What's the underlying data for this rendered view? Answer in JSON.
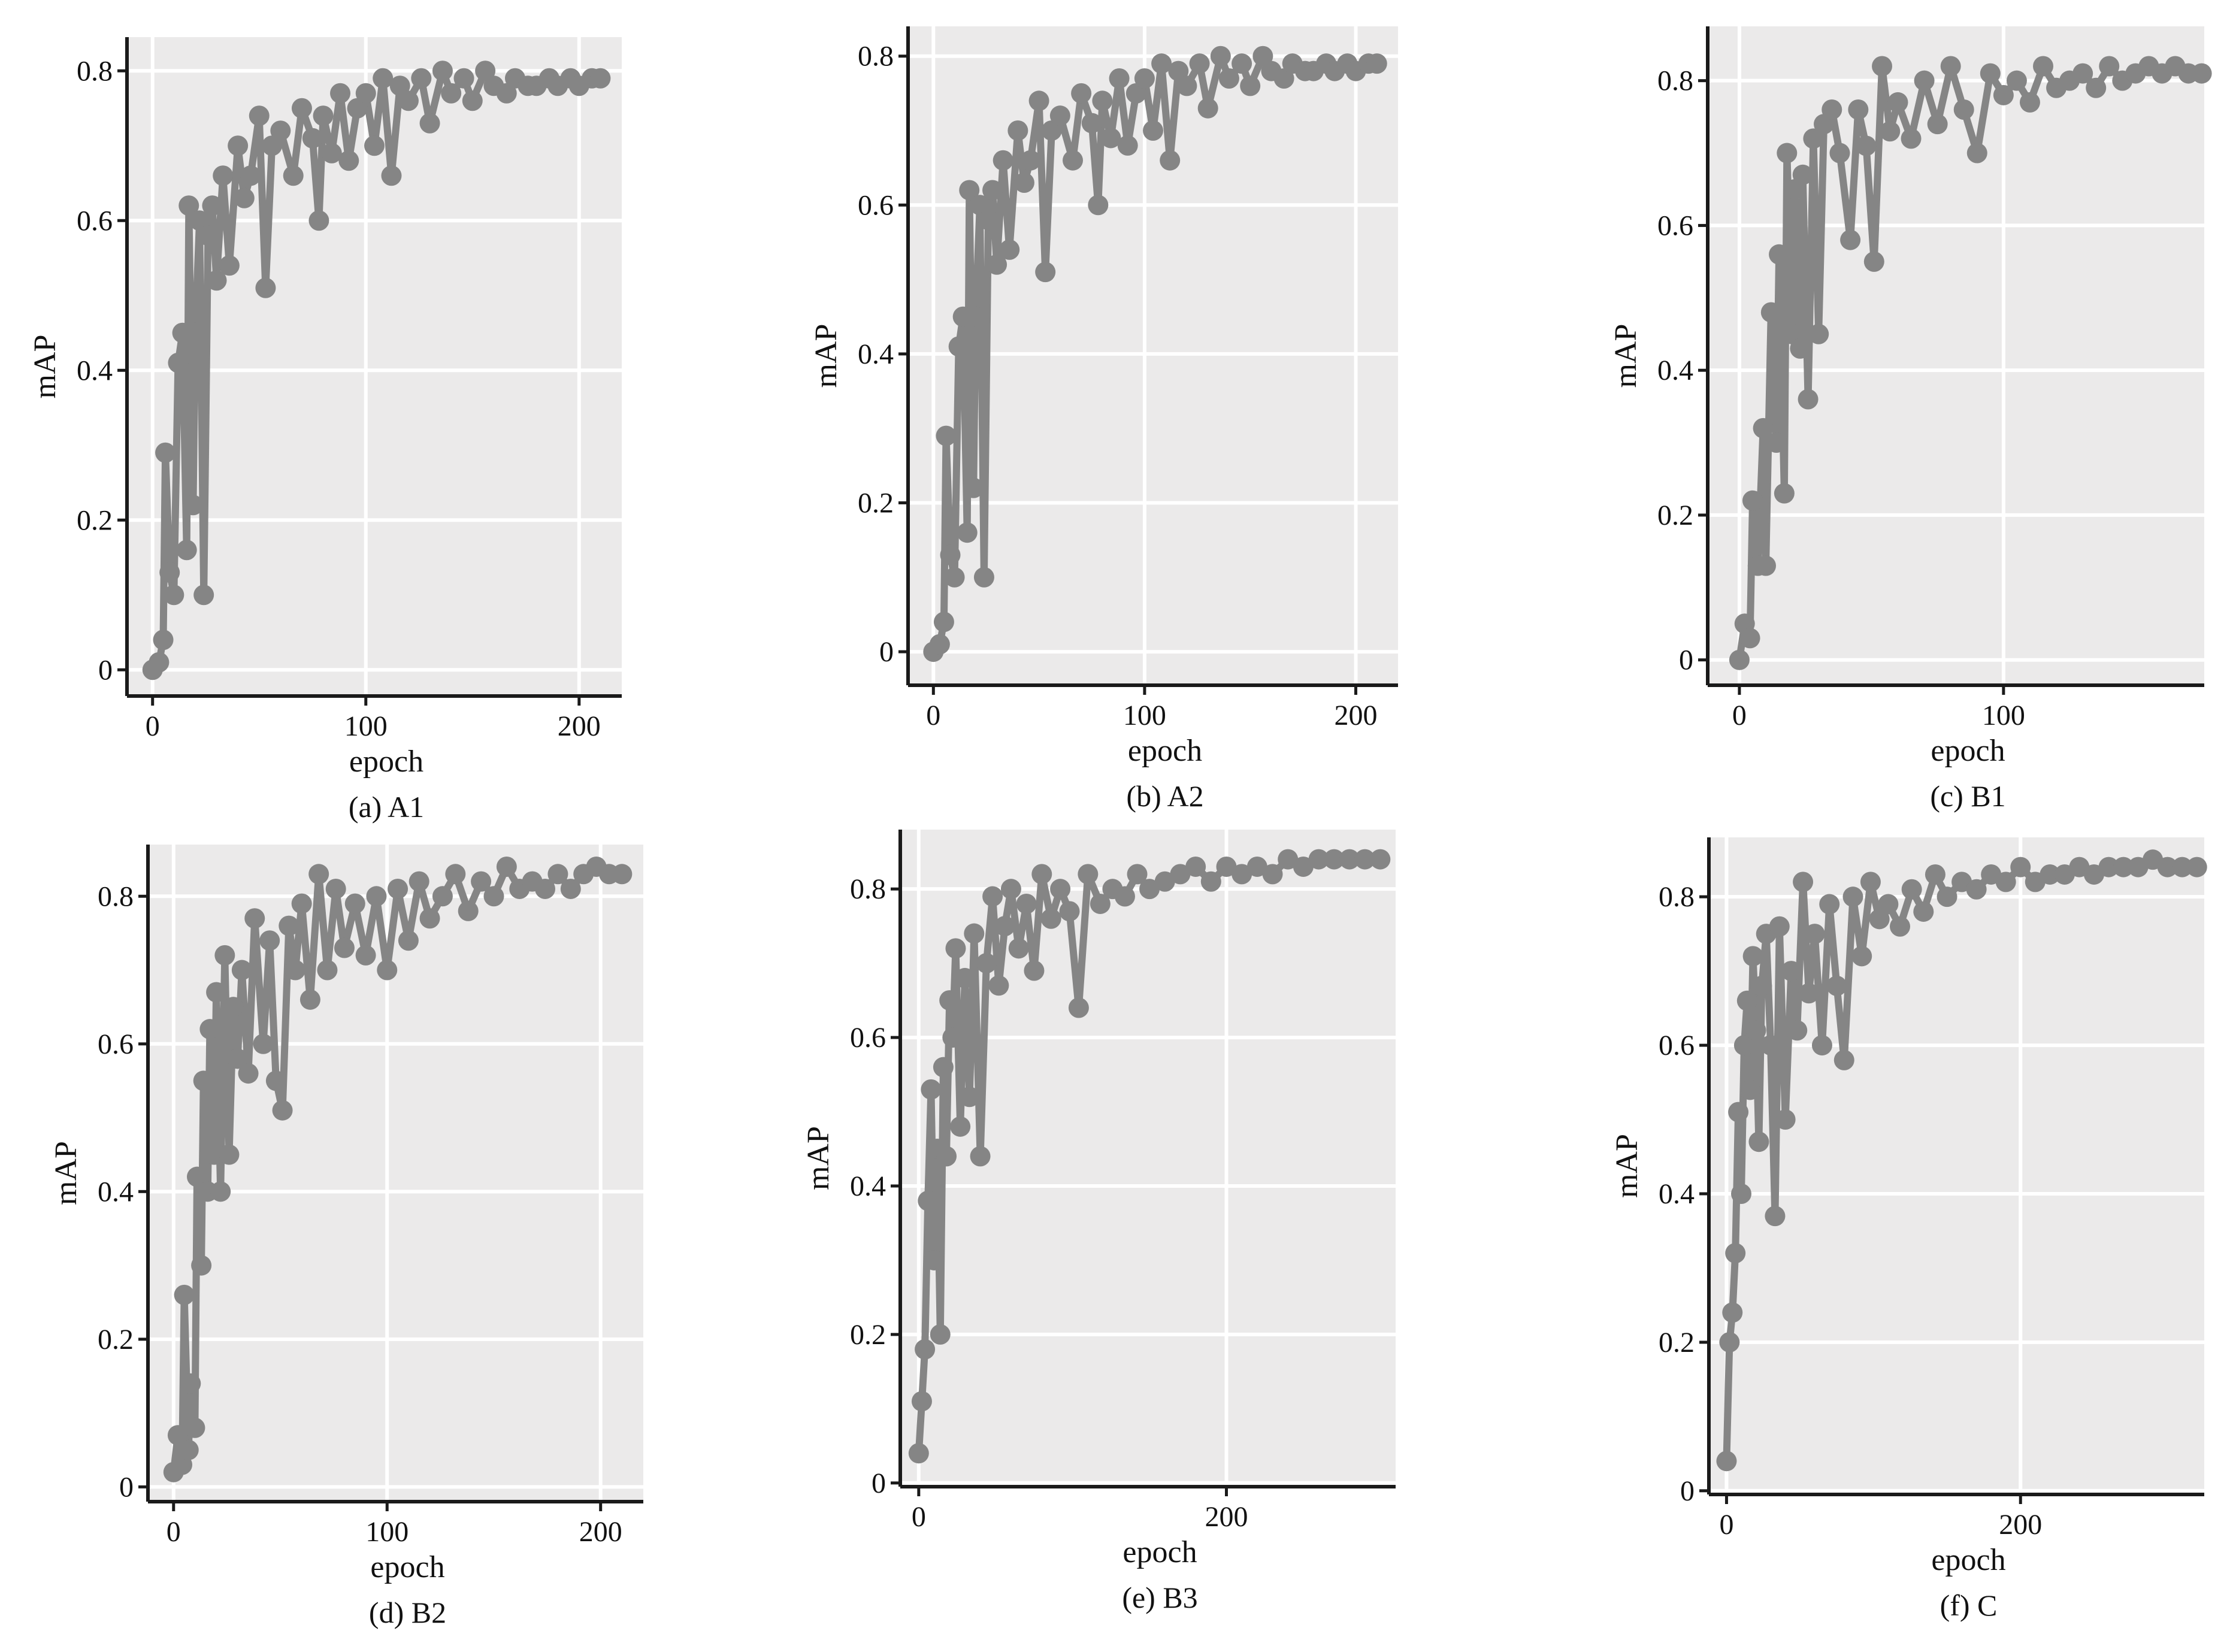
{
  "figure": {
    "series_color": "#858585",
    "plot_background": "#ebeaea",
    "grid_color": "#ffffff",
    "axis_color": "#1a1a1a"
  },
  "chart_data": [
    {
      "type": "line",
      "caption": "(a) A1",
      "xlabel": "epoch",
      "ylabel": "mAP",
      "xlim": [
        -12,
        220
      ],
      "ylim": [
        -0.035,
        0.845
      ],
      "xticks": [
        0,
        100,
        200
      ],
      "yticks": [
        0,
        0.2,
        0.4,
        0.6,
        0.8
      ],
      "xtick_labels": [
        "0",
        "100",
        "200"
      ],
      "ytick_labels": [
        "0",
        "0.2",
        "0.4",
        "0.6",
        "0.8"
      ],
      "grid": true,
      "series": [
        {
          "markers": true,
          "x": [
            0,
            3,
            5,
            6,
            8,
            10,
            12,
            14,
            16,
            17,
            19,
            20,
            22,
            24,
            26,
            28,
            30,
            33,
            36,
            40,
            43,
            46,
            50,
            53,
            56,
            60,
            66,
            70,
            75,
            78,
            80,
            84,
            88,
            92,
            96,
            100,
            104,
            108,
            112,
            116,
            120,
            126,
            130,
            136,
            140,
            146,
            150,
            156,
            160,
            166,
            170,
            176,
            180,
            186,
            190,
            196,
            200,
            206,
            210
          ],
          "y": [
            0.0,
            0.01,
            0.04,
            0.29,
            0.13,
            0.1,
            0.41,
            0.45,
            0.16,
            0.62,
            0.22,
            0.45,
            0.6,
            0.1,
            0.58,
            0.62,
            0.52,
            0.66,
            0.54,
            0.7,
            0.63,
            0.66,
            0.74,
            0.51,
            0.7,
            0.72,
            0.66,
            0.75,
            0.71,
            0.6,
            0.74,
            0.69,
            0.77,
            0.68,
            0.75,
            0.77,
            0.7,
            0.79,
            0.66,
            0.78,
            0.76,
            0.79,
            0.73,
            0.8,
            0.77,
            0.79,
            0.76,
            0.8,
            0.78,
            0.77,
            0.79,
            0.78,
            0.78,
            0.79,
            0.78,
            0.79,
            0.78,
            0.79,
            0.79
          ]
        }
      ]
    },
    {
      "type": "line",
      "caption": "(b) A2",
      "xlabel": "epoch",
      "ylabel": "mAP",
      "xlim": [
        -12,
        220
      ],
      "ylim": [
        -0.045,
        0.84
      ],
      "xticks": [
        0,
        100,
        200
      ],
      "yticks": [
        0,
        0.2,
        0.4,
        0.6,
        0.8
      ],
      "xtick_labels": [
        "0",
        "100",
        "200"
      ],
      "ytick_labels": [
        "0",
        "0.2",
        "0.4",
        "0.6",
        "0.8"
      ],
      "grid": true,
      "series": [
        {
          "markers": true,
          "x": [
            0,
            3,
            5,
            6,
            8,
            10,
            12,
            14,
            16,
            17,
            19,
            20,
            22,
            24,
            26,
            28,
            30,
            33,
            36,
            40,
            43,
            46,
            50,
            53,
            56,
            60,
            66,
            70,
            75,
            78,
            80,
            84,
            88,
            92,
            96,
            100,
            104,
            108,
            112,
            116,
            120,
            126,
            130,
            136,
            140,
            146,
            150,
            156,
            160,
            166,
            170,
            176,
            180,
            186,
            190,
            196,
            200,
            206,
            210
          ],
          "y": [
            0.0,
            0.01,
            0.04,
            0.29,
            0.13,
            0.1,
            0.41,
            0.45,
            0.16,
            0.62,
            0.22,
            0.45,
            0.6,
            0.1,
            0.58,
            0.62,
            0.52,
            0.66,
            0.54,
            0.7,
            0.63,
            0.66,
            0.74,
            0.51,
            0.7,
            0.72,
            0.66,
            0.75,
            0.71,
            0.6,
            0.74,
            0.69,
            0.77,
            0.68,
            0.75,
            0.77,
            0.7,
            0.79,
            0.66,
            0.78,
            0.76,
            0.79,
            0.73,
            0.8,
            0.77,
            0.79,
            0.76,
            0.8,
            0.78,
            0.77,
            0.79,
            0.78,
            0.78,
            0.79,
            0.78,
            0.79,
            0.78,
            0.79,
            0.79
          ]
        }
      ]
    },
    {
      "type": "line",
      "caption": "(c) B1",
      "xlabel": "epoch",
      "ylabel": "mAP",
      "xlim": [
        -12,
        176
      ],
      "ylim": [
        -0.035,
        0.875
      ],
      "xticks": [
        0,
        100
      ],
      "yticks": [
        0,
        0.2,
        0.4,
        0.6,
        0.8
      ],
      "xtick_labels": [
        "0",
        "100"
      ],
      "ytick_labels": [
        "0",
        "0.2",
        "0.4",
        "0.6",
        "0.8"
      ],
      "grid": true,
      "series": [
        {
          "markers": true,
          "x": [
            0,
            2,
            4,
            5,
            7,
            9,
            10,
            12,
            14,
            15,
            17,
            18,
            20,
            21,
            23,
            24,
            26,
            28,
            30,
            32,
            35,
            38,
            42,
            45,
            48,
            51,
            54,
            57,
            60,
            65,
            70,
            75,
            80,
            85,
            90,
            95,
            100,
            105,
            110,
            115,
            120,
            125,
            130,
            135,
            140,
            145,
            150,
            155,
            160,
            165,
            170,
            175
          ],
          "y": [
            0.0,
            0.05,
            0.03,
            0.22,
            0.13,
            0.32,
            0.13,
            0.48,
            0.3,
            0.56,
            0.23,
            0.7,
            0.45,
            0.65,
            0.43,
            0.67,
            0.36,
            0.72,
            0.45,
            0.74,
            0.76,
            0.7,
            0.58,
            0.76,
            0.71,
            0.55,
            0.82,
            0.73,
            0.77,
            0.72,
            0.8,
            0.74,
            0.82,
            0.76,
            0.7,
            0.81,
            0.78,
            0.8,
            0.77,
            0.82,
            0.79,
            0.8,
            0.81,
            0.79,
            0.82,
            0.8,
            0.81,
            0.82,
            0.81,
            0.82,
            0.81,
            0.81
          ]
        }
      ]
    },
    {
      "type": "line",
      "caption": "(d) B2",
      "xlabel": "epoch",
      "ylabel": "mAP",
      "xlim": [
        -12,
        220
      ],
      "ylim": [
        -0.02,
        0.87
      ],
      "xticks": [
        0,
        100,
        200
      ],
      "yticks": [
        0,
        0.2,
        0.4,
        0.6,
        0.8
      ],
      "xtick_labels": [
        "0",
        "100",
        "200"
      ],
      "ytick_labels": [
        "0",
        "0.2",
        "0.4",
        "0.6",
        "0.8"
      ],
      "grid": true,
      "series": [
        {
          "markers": true,
          "x": [
            0,
            2,
            4,
            5,
            7,
            8,
            10,
            11,
            13,
            14,
            16,
            17,
            19,
            20,
            22,
            24,
            26,
            28,
            30,
            32,
            35,
            38,
            42,
            45,
            48,
            51,
            54,
            57,
            60,
            64,
            68,
            72,
            76,
            80,
            85,
            90,
            95,
            100,
            105,
            110,
            115,
            120,
            126,
            132,
            138,
            144,
            150,
            156,
            162,
            168,
            174,
            180,
            186,
            192,
            198,
            204,
            210
          ],
          "y": [
            0.02,
            0.07,
            0.03,
            0.26,
            0.05,
            0.14,
            0.08,
            0.42,
            0.3,
            0.55,
            0.4,
            0.62,
            0.45,
            0.67,
            0.4,
            0.72,
            0.45,
            0.65,
            0.58,
            0.7,
            0.56,
            0.77,
            0.6,
            0.74,
            0.55,
            0.51,
            0.76,
            0.7,
            0.79,
            0.66,
            0.83,
            0.7,
            0.81,
            0.73,
            0.79,
            0.72,
            0.8,
            0.7,
            0.81,
            0.74,
            0.82,
            0.77,
            0.8,
            0.83,
            0.78,
            0.82,
            0.8,
            0.84,
            0.81,
            0.82,
            0.81,
            0.83,
            0.81,
            0.83,
            0.84,
            0.83,
            0.83
          ]
        }
      ]
    },
    {
      "type": "line",
      "caption": "(e) B3",
      "xlabel": "epoch",
      "ylabel": "mAP",
      "xlim": [
        -12,
        310
      ],
      "ylim": [
        -0.005,
        0.88
      ],
      "xticks": [
        0,
        200
      ],
      "yticks": [
        0,
        0.2,
        0.4,
        0.6,
        0.8
      ],
      "xtick_labels": [
        "0",
        "200"
      ],
      "ytick_labels": [
        "0",
        "0.2",
        "0.4",
        "0.6",
        "0.8"
      ],
      "grid": true,
      "series": [
        {
          "markers": true,
          "x": [
            0,
            2,
            4,
            6,
            8,
            10,
            12,
            14,
            16,
            18,
            20,
            22,
            24,
            27,
            30,
            33,
            36,
            40,
            44,
            48,
            52,
            56,
            60,
            65,
            70,
            75,
            80,
            86,
            92,
            98,
            104,
            110,
            118,
            126,
            134,
            142,
            150,
            160,
            170,
            180,
            190,
            200,
            210,
            220,
            230,
            240,
            250,
            260,
            270,
            280,
            290,
            300
          ],
          "y": [
            0.04,
            0.11,
            0.18,
            0.38,
            0.53,
            0.3,
            0.45,
            0.2,
            0.56,
            0.44,
            0.65,
            0.6,
            0.72,
            0.48,
            0.68,
            0.52,
            0.74,
            0.44,
            0.7,
            0.79,
            0.67,
            0.75,
            0.8,
            0.72,
            0.78,
            0.69,
            0.82,
            0.76,
            0.8,
            0.77,
            0.64,
            0.82,
            0.78,
            0.8,
            0.79,
            0.82,
            0.8,
            0.81,
            0.82,
            0.83,
            0.81,
            0.83,
            0.82,
            0.83,
            0.82,
            0.84,
            0.83,
            0.84,
            0.84,
            0.84,
            0.84,
            0.84
          ]
        }
      ]
    },
    {
      "type": "line",
      "caption": "(f) C",
      "xlabel": "epoch",
      "ylabel": "mAP",
      "xlim": [
        -12,
        325
      ],
      "ylim": [
        -0.005,
        0.88
      ],
      "xticks": [
        0,
        200
      ],
      "yticks": [
        0,
        0.2,
        0.4,
        0.6,
        0.8
      ],
      "xtick_labels": [
        "0",
        "200"
      ],
      "ytick_labels": [
        "0",
        "0.2",
        "0.4",
        "0.6",
        "0.8"
      ],
      "grid": true,
      "series": [
        {
          "markers": true,
          "x": [
            0,
            2,
            4,
            6,
            8,
            10,
            12,
            14,
            16,
            18,
            20,
            22,
            24,
            27,
            30,
            33,
            36,
            40,
            44,
            48,
            52,
            56,
            60,
            65,
            70,
            75,
            80,
            86,
            92,
            98,
            104,
            110,
            118,
            126,
            134,
            142,
            150,
            160,
            170,
            180,
            190,
            200,
            210,
            220,
            230,
            240,
            250,
            260,
            270,
            280,
            290,
            300,
            310,
            320
          ],
          "y": [
            0.04,
            0.2,
            0.24,
            0.32,
            0.51,
            0.4,
            0.6,
            0.66,
            0.54,
            0.72,
            0.62,
            0.47,
            0.68,
            0.75,
            0.6,
            0.37,
            0.76,
            0.5,
            0.7,
            0.62,
            0.82,
            0.67,
            0.75,
            0.6,
            0.79,
            0.68,
            0.58,
            0.8,
            0.72,
            0.82,
            0.77,
            0.79,
            0.76,
            0.81,
            0.78,
            0.83,
            0.8,
            0.82,
            0.81,
            0.83,
            0.82,
            0.84,
            0.82,
            0.83,
            0.83,
            0.84,
            0.83,
            0.84,
            0.84,
            0.84,
            0.85,
            0.84,
            0.84,
            0.84
          ]
        }
      ]
    }
  ]
}
